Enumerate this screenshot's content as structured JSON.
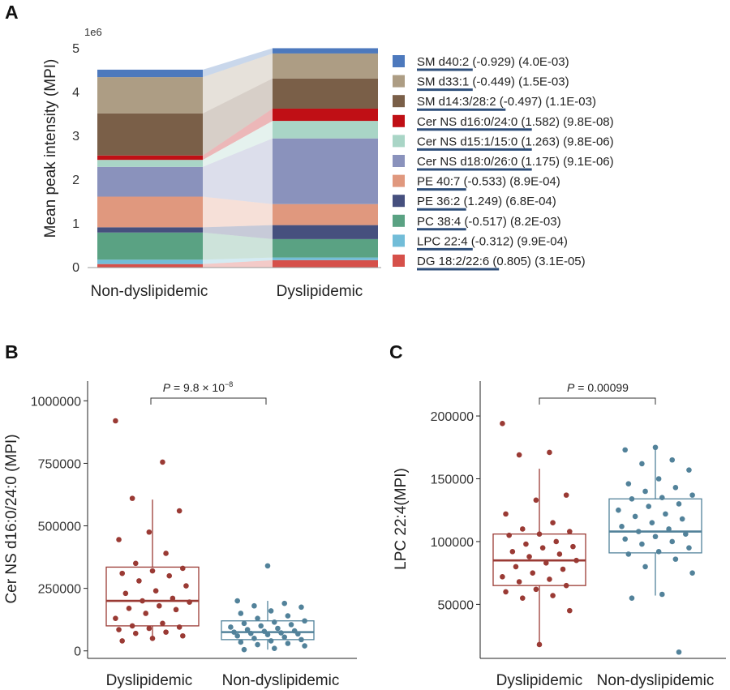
{
  "figure": {
    "panels": [
      "A",
      "B",
      "C"
    ]
  },
  "chart_data": [
    {
      "panel": "A",
      "type": "bar",
      "stacked": true,
      "categories": [
        "Non-dyslipidemic",
        "Dyslipidemic"
      ],
      "ylabel": "Mean peak intensity (MPI)",
      "y_scale_label": "1e6",
      "yticks": [
        "0",
        "1",
        "2",
        "3",
        "4",
        "5"
      ],
      "ylim": [
        0,
        5.05
      ],
      "legend_position": "right",
      "series": [
        {
          "name": "DG 18:2/22:6",
          "stat": "(0.805) (3.1E-05)",
          "color": "#d6504a",
          "values": [
            0.08,
            0.17
          ]
        },
        {
          "name": "LPC 22:4",
          "stat": "(-0.312) (9.9E-04)",
          "color": "#72bdd8",
          "values": [
            0.1,
            0.06
          ]
        },
        {
          "name": "PC 38:4",
          "stat": "(-0.517) (8.2E-03)",
          "color": "#5aa283",
          "values": [
            0.62,
            0.42
          ]
        },
        {
          "name": "PE 36:2",
          "stat": "(1.249) (6.8E-04)",
          "color": "#46507e",
          "values": [
            0.12,
            0.32
          ]
        },
        {
          "name": "PE 40:7",
          "stat": "(-0.533) (8.9E-04)",
          "color": "#e0987e",
          "values": [
            0.7,
            0.48
          ]
        },
        {
          "name": "Cer NS d18:0/26:0",
          "stat": "(1.175) (9.1E-06)",
          "color": "#8a92bc",
          "values": [
            0.68,
            1.5
          ]
        },
        {
          "name": "Cer NS d15:1/15:0",
          "stat": "(1.263) (9.8E-06)",
          "color": "#a9d5c6",
          "values": [
            0.16,
            0.4
          ]
        },
        {
          "name": "Cer NS d16:0/24:0",
          "stat": "(1.582) (9.8E-08)",
          "color": "#c00f15",
          "values": [
            0.1,
            0.28
          ]
        },
        {
          "name": "SM d14:3/28:2",
          "stat": "(-0.497) (1.1E-03)",
          "color": "#7a5f48",
          "values": [
            0.96,
            0.69
          ]
        },
        {
          "name": "SM d33:1",
          "stat": "(-0.449) (1.5E-03)",
          "color": "#ad9d84",
          "values": [
            0.83,
            0.57
          ]
        },
        {
          "name": "SM d40:2",
          "stat": "(-0.929) (4.0E-03)",
          "color": "#4d79bd",
          "values": [
            0.17,
            0.12
          ]
        }
      ]
    },
    {
      "panel": "B",
      "type": "scatter",
      "subtype": "box-with-jitter",
      "ylabel": "Cer NS d16:0/24:0 (MPI)",
      "yticks": [
        "0",
        "250000",
        "500000",
        "750000",
        "1000000"
      ],
      "ylim": [
        -30000,
        1040000
      ],
      "pvalue_text": "P = 9.8 × 10",
      "pvalue_exp": "−8",
      "groups": [
        {
          "name": "Dyslipidemic",
          "color": "#9a3a34",
          "box": {
            "q1": 100000,
            "median": 200000,
            "q3": 335000,
            "low": 40000,
            "high": 605000
          },
          "points": [
            920000,
            755000,
            610000,
            560000,
            475000,
            445000,
            390000,
            350000,
            330000,
            320000,
            310000,
            300000,
            280000,
            260000,
            240000,
            230000,
            210000,
            200000,
            195000,
            180000,
            170000,
            165000,
            150000,
            130000,
            110000,
            100000,
            95000,
            90000,
            85000,
            75000,
            70000,
            60000,
            50000,
            40000
          ]
        },
        {
          "name": "Non-dyslipidemic",
          "color": "#52829a",
          "box": {
            "q1": 45000,
            "median": 75000,
            "q3": 120000,
            "low": 5000,
            "high": 200000
          },
          "points": [
            340000,
            200000,
            190000,
            180000,
            175000,
            160000,
            150000,
            140000,
            130000,
            120000,
            115000,
            110000,
            105000,
            100000,
            95000,
            90000,
            85000,
            80000,
            78000,
            75000,
            72000,
            70000,
            68000,
            65000,
            60000,
            55000,
            50000,
            45000,
            40000,
            35000,
            30000,
            25000,
            20000,
            10000,
            5000
          ]
        }
      ]
    },
    {
      "panel": "C",
      "type": "scatter",
      "subtype": "box-with-jitter",
      "ylabel": "LPC 22:4(MPI)",
      "yticks": [
        "50000",
        "100000",
        "150000",
        "200000"
      ],
      "ylim": [
        7000,
        211000
      ],
      "pvalue_text": "P = 0.00099",
      "groups": [
        {
          "name": "Dyslipidemic",
          "color": "#9a3a34",
          "box": {
            "q1": 65000,
            "median": 85000,
            "q3": 106000,
            "low": 18000,
            "high": 158000
          },
          "points": [
            194000,
            171000,
            169000,
            137000,
            133000,
            122000,
            115000,
            110000,
            108000,
            106000,
            105000,
            100000,
            98000,
            96000,
            95000,
            92000,
            90000,
            88000,
            85000,
            83000,
            80000,
            78000,
            75000,
            72000,
            70000,
            68000,
            65000,
            62000,
            60000,
            57000,
            55000,
            45000,
            18000
          ]
        },
        {
          "name": "Non-dyslipidemic",
          "color": "#52829a",
          "box": {
            "q1": 91000,
            "median": 108000,
            "q3": 134000,
            "low": 57000,
            "high": 175000
          },
          "points": [
            175000,
            173000,
            165000,
            162000,
            157000,
            150000,
            146000,
            143000,
            140000,
            137000,
            135000,
            134000,
            130000,
            128000,
            125000,
            122000,
            120000,
            118000,
            115000,
            112000,
            110000,
            108000,
            106000,
            104000,
            102000,
            100000,
            98000,
            95000,
            92000,
            90000,
            86000,
            80000,
            75000,
            58000,
            55000,
            12000
          ]
        }
      ]
    }
  ]
}
